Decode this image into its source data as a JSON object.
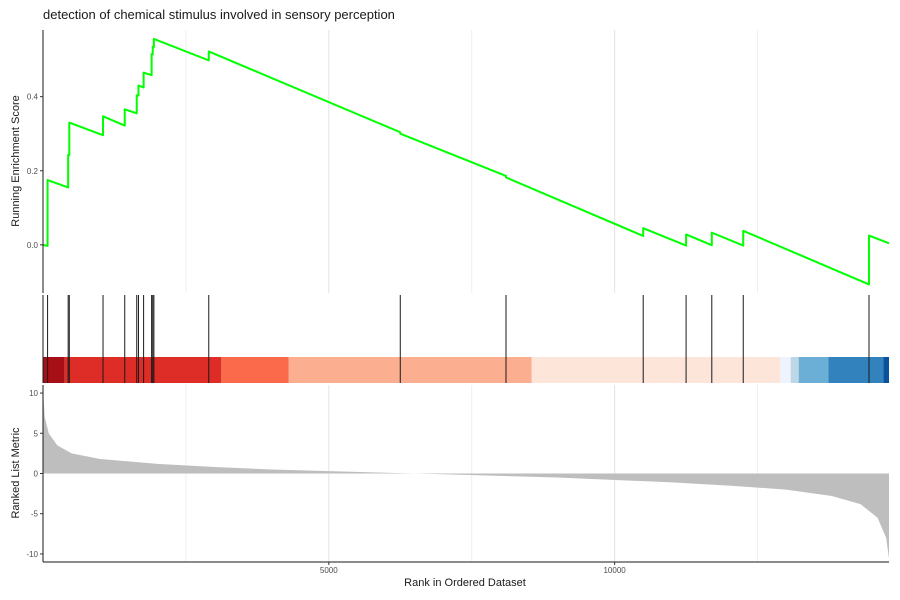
{
  "chart_data": {
    "type": "line",
    "title": "detection of chemical stimulus involved in sensory perception",
    "ylabel_top": "Running Enrichment Score",
    "ylabel_bottom": "Ranked List Metric",
    "xlabel": "Rank in Ordered Dataset",
    "x_range": [
      0,
      14800
    ],
    "x_ticks": [
      {
        "value": 5000,
        "label": "5000"
      },
      {
        "value": 10000,
        "label": "10000"
      }
    ],
    "es_ylim": [
      -0.13,
      0.58
    ],
    "es_ticks": [
      {
        "value": 0.0,
        "label": "0.0"
      },
      {
        "value": 0.2,
        "label": "0.2"
      },
      {
        "value": 0.4,
        "label": "0.4"
      }
    ],
    "metric_ylim": [
      -11.0,
      11.0
    ],
    "metric_ticks": [
      {
        "value": 10,
        "label": "10"
      },
      {
        "value": 5,
        "label": "5"
      },
      {
        "value": 0,
        "label": "0"
      },
      {
        "value": -5,
        "label": "-5"
      },
      {
        "value": -10,
        "label": "-10"
      }
    ],
    "hit_ranks": [
      80,
      440,
      460,
      1050,
      1430,
      1640,
      1670,
      1760,
      1900,
      1920,
      1940,
      2900,
      6250,
      8100,
      10500,
      11250,
      11700,
      12250,
      14450
    ],
    "es_curve": {
      "x": [
        0,
        80,
        80,
        440,
        440,
        460,
        460,
        1050,
        1050,
        1430,
        1430,
        1640,
        1640,
        1670,
        1670,
        1760,
        1760,
        1900,
        1900,
        1920,
        1920,
        1940,
        1940,
        2900,
        2900,
        6250,
        6250,
        8100,
        8100,
        10500,
        10500,
        11250,
        11250,
        11700,
        11700,
        12250,
        12250,
        14450,
        14450,
        14800
      ],
      "y": [
        0.0,
        -0.003,
        0.175,
        0.155,
        0.243,
        0.243,
        0.33,
        0.296,
        0.347,
        0.322,
        0.366,
        0.355,
        0.404,
        0.403,
        0.43,
        0.425,
        0.465,
        0.458,
        0.515,
        0.514,
        0.535,
        0.534,
        0.556,
        0.498,
        0.522,
        0.304,
        0.3,
        0.186,
        0.182,
        0.024,
        0.045,
        -0.002,
        0.028,
        -0.001,
        0.033,
        -0.002,
        0.038,
        -0.107,
        0.025,
        0.004
      ],
      "color": "#00ff00"
    },
    "metric_curve": {
      "x": [
        0,
        30,
        100,
        250,
        500,
        1000,
        2000,
        3000,
        4000,
        5000,
        6000,
        7000,
        8000,
        9000,
        10000,
        11000,
        12000,
        13000,
        13800,
        14300,
        14600,
        14750,
        14800
      ],
      "y": [
        10.5,
        7.0,
        5.0,
        3.5,
        2.5,
        1.8,
        1.2,
        0.8,
        0.5,
        0.3,
        0.1,
        -0.1,
        -0.3,
        -0.5,
        -0.8,
        -1.1,
        -1.5,
        -2.0,
        -2.8,
        -3.8,
        -5.5,
        -8.0,
        -10.6
      ],
      "fill": "#bebebe"
    },
    "color_bands": [
      {
        "from": 0,
        "to": 380,
        "color": "#a50f15"
      },
      {
        "from": 380,
        "to": 3120,
        "color": "#de2d26"
      },
      {
        "from": 3120,
        "to": 4300,
        "color": "#fb6a4a"
      },
      {
        "from": 4300,
        "to": 8550,
        "color": "#fcae91"
      },
      {
        "from": 8550,
        "to": 12900,
        "color": "#fee5d9"
      },
      {
        "from": 12900,
        "to": 13080,
        "color": "#eff3ff"
      },
      {
        "from": 13080,
        "to": 13220,
        "color": "#bdd7e7"
      },
      {
        "from": 13220,
        "to": 13740,
        "color": "#6baed6"
      },
      {
        "from": 13740,
        "to": 14700,
        "color": "#3182bd"
      },
      {
        "from": 14700,
        "to": 14800,
        "color": "#08519c"
      }
    ]
  }
}
